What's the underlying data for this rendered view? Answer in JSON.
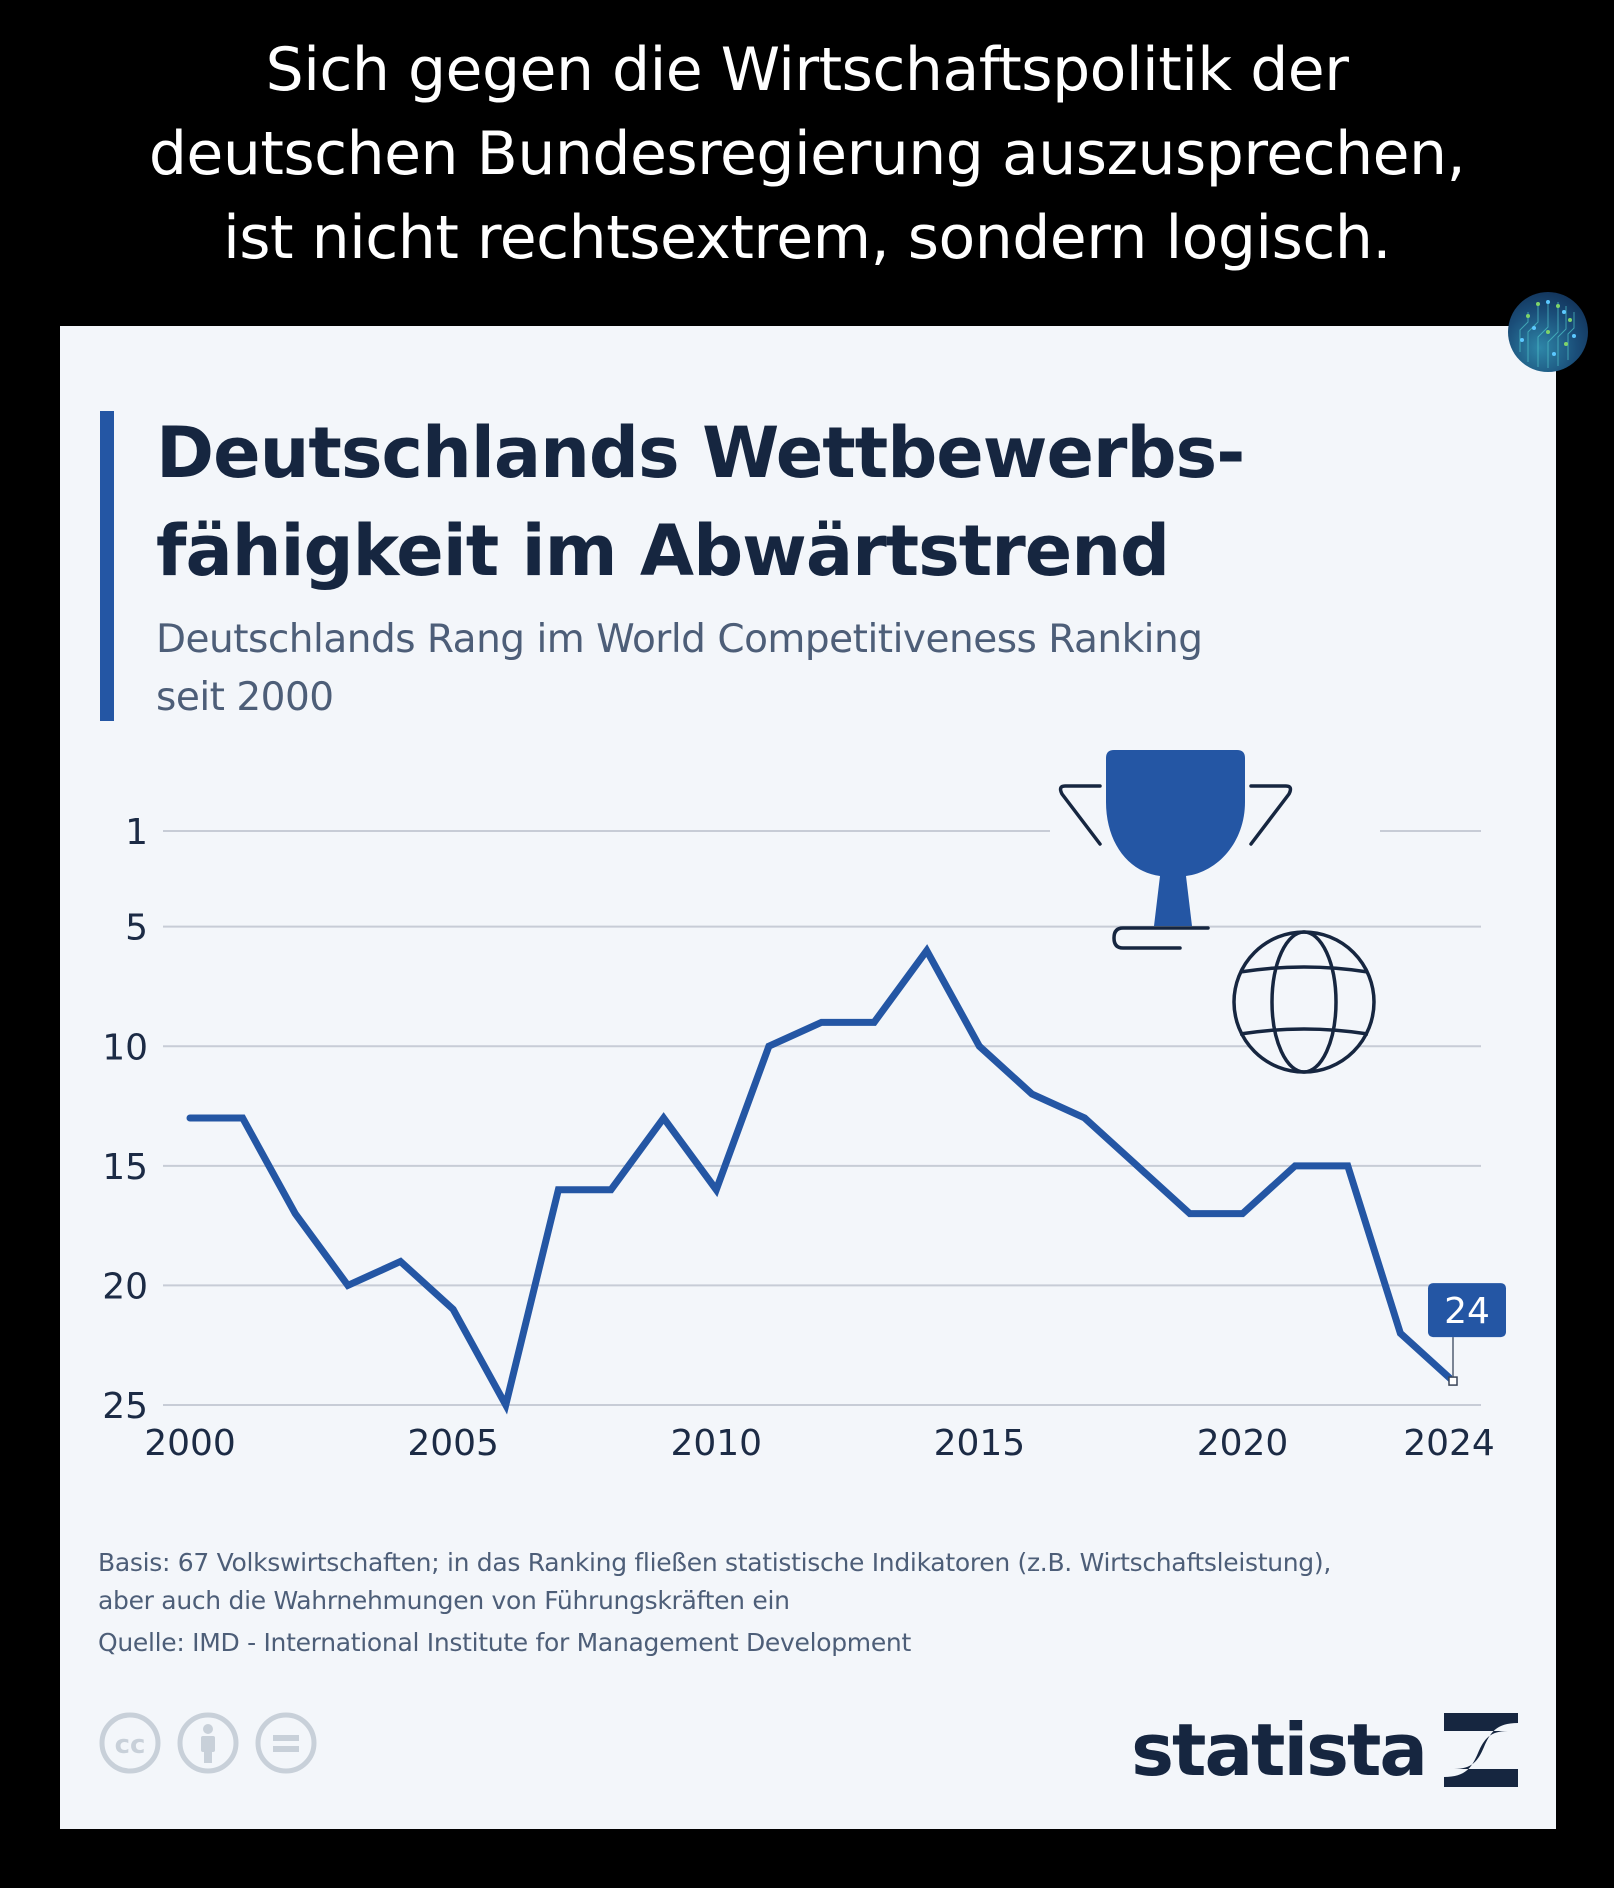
{
  "headline": {
    "lines": [
      "Sich gegen die Wirtschaftspolitik der",
      "deutschen Bundesregierung auszusprechen,",
      "ist nicht rechtsextrem, sondern logisch."
    ]
  },
  "card": {
    "title_lines": [
      "Deutschlands Wettbewerbs-",
      "fähigkeit im Abwärtstrend"
    ],
    "subtitle_lines": [
      "Deutschlands Rang im World Competitiveness Ranking",
      "seit 2000"
    ],
    "footnote_lines": [
      "Basis: 67 Volkswirtschaften; in das Ranking fließen statistische Indikatoren (z.B. Wirtschaftsleistung),",
      "aber auch die Wahrnehmungen von Führungskräften ein"
    ],
    "source": "Quelle: IMD - International Institute for Management Development",
    "brand": "statista",
    "license_icons": [
      "cc-icon",
      "attribution-icon",
      "no-derivatives-icon"
    ],
    "decor_icons": [
      "trophy-icon",
      "globe-icon"
    ]
  },
  "colors": {
    "accent": "#2456a4",
    "title": "#162640",
    "subtitle": "#4d5e78",
    "card_bg": "#f3f6fa",
    "grid": "#c7ccd6",
    "license_icons": "#c8d0d9"
  },
  "chart_data": {
    "type": "line",
    "title": "Deutschlands Wettbewerbsfähigkeit im Abwärtstrend",
    "subtitle": "Deutschlands Rang im World Competitiveness Ranking seit 2000",
    "xlabel": "",
    "ylabel": "",
    "x": [
      2000,
      2001,
      2002,
      2003,
      2004,
      2005,
      2006,
      2007,
      2008,
      2009,
      2010,
      2011,
      2012,
      2013,
      2014,
      2015,
      2016,
      2017,
      2018,
      2019,
      2020,
      2021,
      2022,
      2023,
      2024
    ],
    "series": [
      {
        "name": "Rang Deutschland",
        "values": [
          13,
          13,
          17,
          20,
          19,
          21,
          25,
          16,
          16,
          13,
          16,
          10,
          9,
          9,
          6,
          10,
          12,
          13,
          15,
          17,
          17,
          15,
          15,
          22,
          24
        ]
      }
    ],
    "y_inverted": true,
    "ylim": [
      1,
      25
    ],
    "xlim": [
      2000,
      2024
    ],
    "y_ticks": [
      1,
      5,
      10,
      15,
      20,
      25
    ],
    "x_ticks": [
      2000,
      2005,
      2010,
      2015,
      2020,
      2024
    ],
    "grid": "horizontal",
    "annotations": [
      {
        "x": 2024,
        "y": 24,
        "label": "24"
      }
    ],
    "legend": "none"
  }
}
